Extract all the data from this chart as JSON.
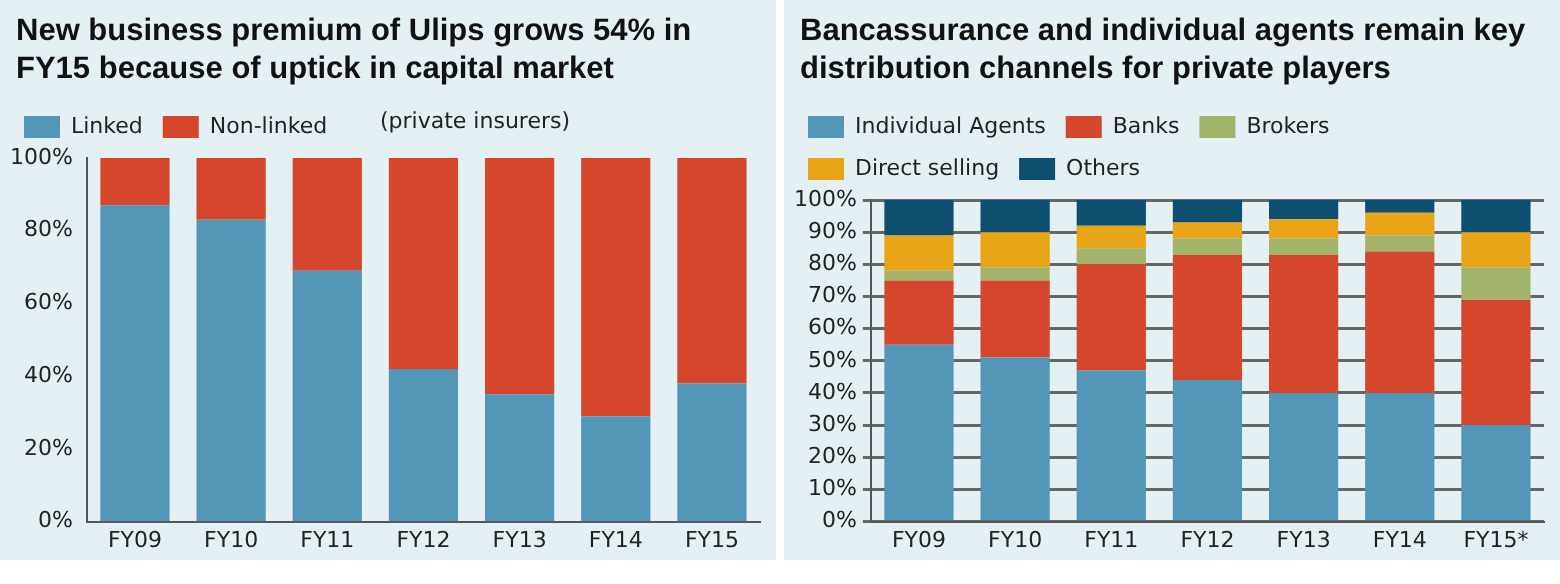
{
  "chart_data": [
    {
      "type": "bar",
      "title": "New business premium of Ulips grows 54% in FY15 because of uptick in capital market",
      "annotations": [
        "(private insurers)"
      ],
      "categories": [
        "FY09",
        "FY10",
        "FY11",
        "FY12",
        "FY13",
        "FY14",
        "FY15"
      ],
      "stacked": true,
      "legend": "top left",
      "grid": false,
      "series": [
        {
          "name": "Linked",
          "color": "#5496b8",
          "values": [
            87,
            83,
            69,
            42,
            35,
            29,
            38
          ]
        },
        {
          "name": "Non-linked",
          "color": "#d4472c",
          "values": [
            13,
            17,
            31,
            58,
            65,
            71,
            62
          ]
        }
      ],
      "ylim": [
        0,
        100
      ],
      "yticks": [
        {
          "value": 0,
          "label": "0%"
        },
        {
          "value": 20,
          "label": "20%"
        },
        {
          "value": 40,
          "label": "40%"
        },
        {
          "value": 60,
          "label": "60%"
        },
        {
          "value": 80,
          "label": "80%"
        },
        {
          "value": 100,
          "label": "100%"
        }
      ]
    },
    {
      "type": "bar",
      "title": "Bancassurance and individual agents remain key distribution channels for private players",
      "categories": [
        "FY09",
        "FY10",
        "FY11",
        "FY12",
        "FY13",
        "FY14",
        "FY15*"
      ],
      "stacked": true,
      "legend": "top left",
      "grid": "y",
      "series": [
        {
          "name": "Individual Agents",
          "color": "#5496b8",
          "values": [
            55,
            51,
            47,
            44,
            40,
            40,
            30
          ]
        },
        {
          "name": "Banks",
          "color": "#d4472c",
          "values": [
            20,
            24,
            33,
            39,
            43,
            44,
            39
          ]
        },
        {
          "name": "Brokers",
          "color": "#a2b46c",
          "values": [
            3,
            4,
            5,
            5,
            5,
            5,
            10
          ]
        },
        {
          "name": "Direct selling",
          "color": "#e8a517",
          "values": [
            11,
            11,
            7,
            5,
            6,
            7,
            11
          ]
        },
        {
          "name": "Others",
          "color": "#0e4f70",
          "values": [
            11,
            10,
            8,
            7,
            6,
            4,
            10
          ]
        }
      ],
      "ylim": [
        0,
        100
      ],
      "yticks": [
        {
          "value": 0,
          "label": "0%"
        },
        {
          "value": 10,
          "label": "10%"
        },
        {
          "value": 20,
          "label": "20%"
        },
        {
          "value": 30,
          "label": "30%"
        },
        {
          "value": 40,
          "label": "40%"
        },
        {
          "value": 50,
          "label": "50%"
        },
        {
          "value": 60,
          "label": "60%"
        },
        {
          "value": 70,
          "label": "70%"
        },
        {
          "value": 80,
          "label": "80%"
        },
        {
          "value": 90,
          "label": "90%"
        },
        {
          "value": 100,
          "label": "100%"
        }
      ]
    }
  ]
}
